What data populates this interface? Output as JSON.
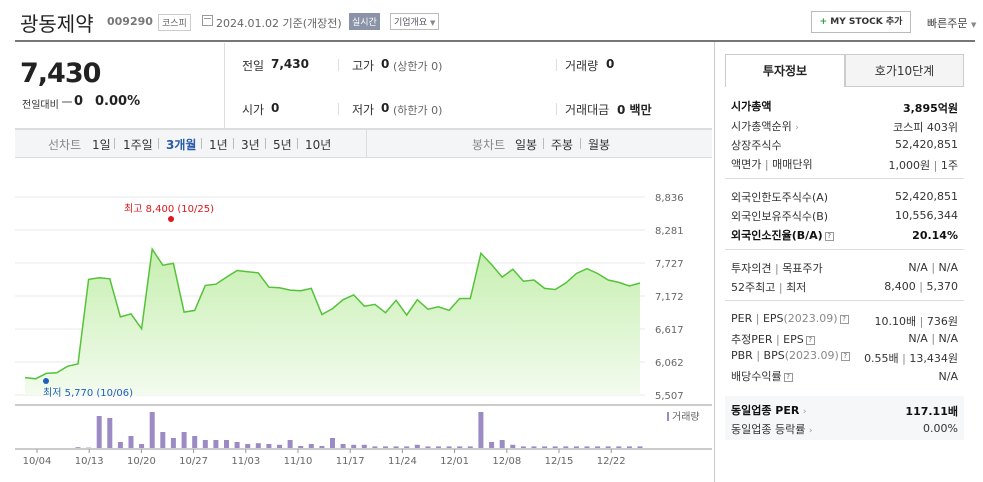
{
  "header": {
    "company_name": "광동제약",
    "stock_code": "009290",
    "market_badge": "코스피",
    "date_text": "2024.01.02  기준(개장전)",
    "realtime_badge": "실시간",
    "company_info_label": "기업개요",
    "my_stock_label": "MY STOCK 추가",
    "quick_order_label": "빠른주문"
  },
  "price": {
    "current": "7,430",
    "change_label": "전일대비",
    "change_value": "0",
    "change_percent": "0.00%"
  },
  "summary": {
    "prev_close_label": "전일",
    "prev_close": "7,430",
    "high_label": "고가",
    "high": "0",
    "high_limit": "(상한가 0)",
    "volume_label": "거래량",
    "volume": "0",
    "open_label": "시가",
    "open": "0",
    "low_label": "저가",
    "low": "0",
    "low_limit": "(하한가 0)",
    "amount_label": "거래대금",
    "amount": "0 백만"
  },
  "periods": {
    "line_label": "선차트",
    "line_items": [
      "1일",
      "1주일",
      "3개월",
      "1년",
      "3년",
      "5년",
      "10년"
    ],
    "active": "3개월",
    "candle_label": "봉차트",
    "candle_items": [
      "일봉",
      "주봉",
      "월봉"
    ]
  },
  "tabs": {
    "invest_info": "투자정보",
    "order_book": "호가10단계"
  },
  "invest": {
    "market_cap_label": "시가총액",
    "market_cap": "3,895억원",
    "market_cap_rank_label": "시가총액순위",
    "market_cap_rank": "코스피 403위",
    "shares_label": "상장주식수",
    "shares": "52,420,851",
    "par_label": "액면가",
    "par_sep": "매매단위",
    "par_value": "1,000원",
    "trade_unit": "1주",
    "foreign_limit_label": "외국인한도주식수(A)",
    "foreign_limit": "52,420,851",
    "foreign_hold_label": "외국인보유주식수(B)",
    "foreign_hold": "10,556,344",
    "foreign_ratio_label": "외국인소진율(B/A)",
    "foreign_ratio": "20.14%",
    "opinion_label": "투자의견",
    "target_label": "목표주가",
    "opinion": "N/A",
    "target": "N/A",
    "week52_high_label": "52주최고",
    "week52_low_label": "최저",
    "week52_high": "8,400",
    "week52_low": "5,370",
    "per_label": "PER",
    "eps_label": "EPS",
    "per_year": "(2023.09)",
    "per": "10.10배",
    "eps": "736원",
    "est_per_label": "추정PER",
    "est_eps_label": "EPS",
    "est_per": "N/A",
    "est_eps": "N/A",
    "pbr_label": "PBR",
    "bps_label": "BPS",
    "pbr_year": "(2023.09)",
    "pbr": "0.55배",
    "bps": "13,434원",
    "div_label": "배당수익률",
    "div": "N/A",
    "sector_per_label": "동일업종 PER",
    "sector_per": "117.11배",
    "sector_rate_label": "동일업종 등락률",
    "sector_rate": "0.00%"
  },
  "chart_data": {
    "type": "area",
    "period": "3개월",
    "x_tick_labels": [
      "10/04",
      "10/13",
      "10/20",
      "10/27",
      "11/03",
      "11/10",
      "11/17",
      "11/24",
      "12/01",
      "12/08",
      "12/15",
      "12/22"
    ],
    "y_tick_labels": [
      "8,836",
      "8,281",
      "7,727",
      "7,172",
      "6,617",
      "6,062",
      "5,507"
    ],
    "ylim": [
      5507,
      8836
    ],
    "high_annotation": "최고  8,400 (10/25)",
    "low_annotation": "최저  5,770 (10/06)",
    "volume_legend": "거래량",
    "colors": {
      "line": "#55c23a",
      "fill_top": "#c6efb0",
      "fill_bottom": "#f3fbee",
      "high": "#e0151b",
      "low": "#1f5fbf",
      "volume": "#9b8ac4"
    },
    "series": [
      {
        "values": [
          5800,
          5780,
          5870,
          5880,
          5990,
          6030,
          7450,
          7480,
          7460,
          6820,
          6870,
          6620,
          7960,
          7690,
          7720,
          6900,
          6930,
          7350,
          7370,
          7490,
          7600,
          7580,
          7560,
          7320,
          7310,
          7270,
          7260,
          7300,
          6860,
          6960,
          7110,
          7190,
          7000,
          7030,
          6890,
          7100,
          6850,
          7110,
          6950,
          6990,
          6930,
          7130,
          7130,
          7890,
          7700,
          7490,
          7620,
          7420,
          7440,
          7300,
          7280,
          7390,
          7550,
          7630,
          7550,
          7440,
          7400,
          7340,
          7390
        ]
      },
      {
        "name": "거래량",
        "values": [
          0,
          0,
          0,
          0,
          0,
          2,
          1,
          80,
          75,
          15,
          30,
          10,
          90,
          40,
          25,
          40,
          30,
          20,
          20,
          20,
          15,
          10,
          12,
          10,
          8,
          20,
          5,
          10,
          5,
          25,
          10,
          8,
          8,
          4,
          4,
          4,
          4,
          8,
          4,
          4,
          4,
          4,
          4,
          90,
          15,
          20,
          8,
          4,
          4,
          4,
          4,
          4,
          4,
          4,
          4,
          4,
          4,
          4,
          4
        ]
      }
    ]
  }
}
